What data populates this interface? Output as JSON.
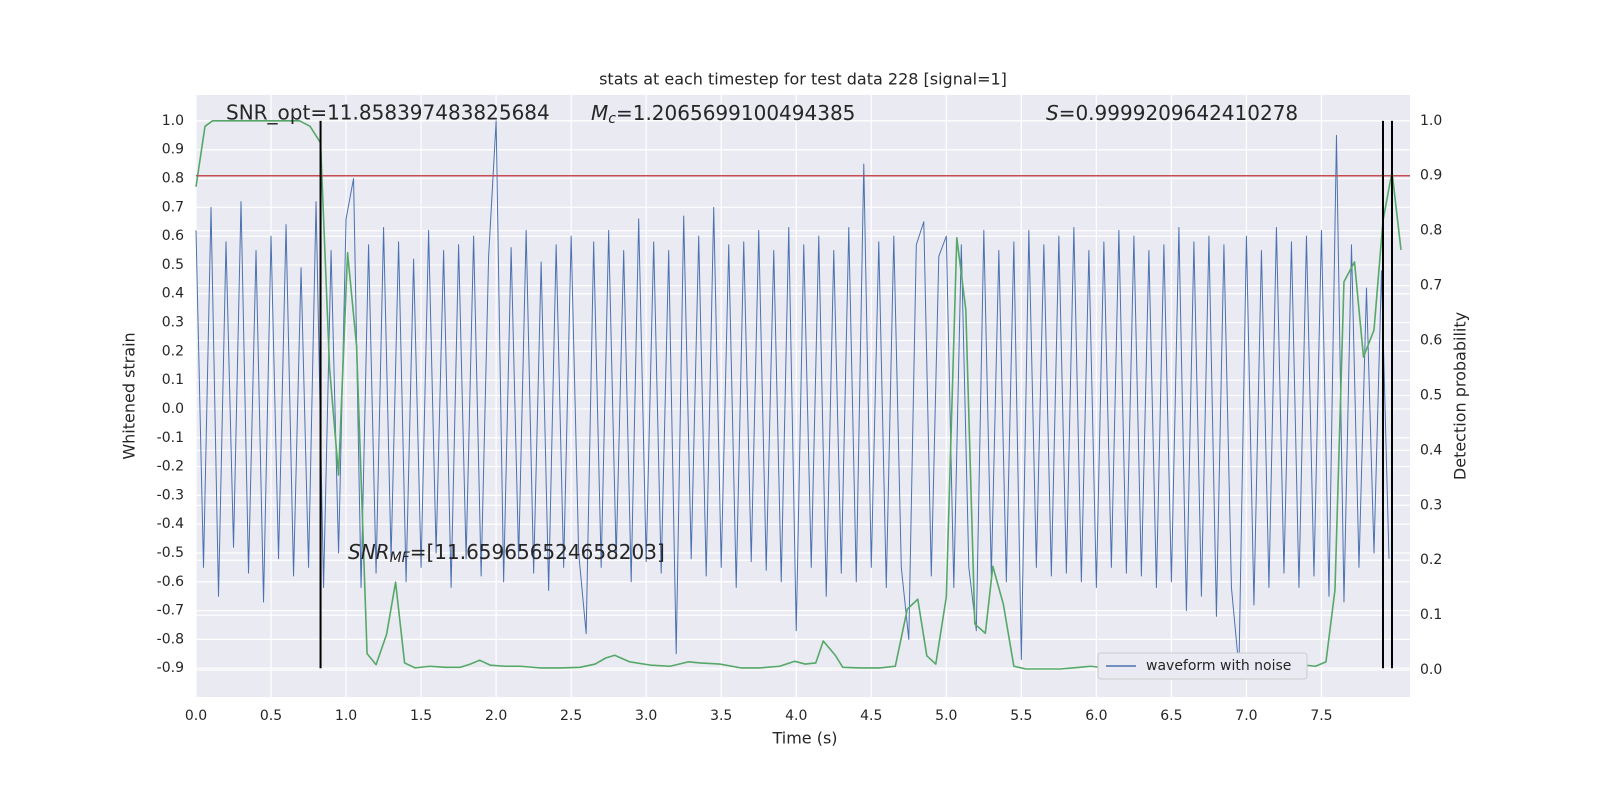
{
  "chart_data": {
    "type": "line",
    "title": "stats at each timestep for test data 228 [signal=1]",
    "xlabel": "Time (s)",
    "ylabel": "Whitened strain",
    "y2label": "Detection probability",
    "xlim": [
      0,
      8.09
    ],
    "ylim": [
      -1.0,
      1.09
    ],
    "y2lim": [
      -0.049,
      1.047
    ],
    "xticks": [
      {
        "value": 0,
        "label": "0.0"
      },
      0.5,
      {
        "value": 1,
        "label": "1.0"
      },
      1.5,
      {
        "value": 2,
        "label": "2.0"
      },
      2.5,
      {
        "value": 3,
        "label": "3.0"
      },
      3.5,
      {
        "value": 4,
        "label": "4.0"
      },
      4.5,
      {
        "value": 5,
        "label": "5.0"
      },
      5.5,
      {
        "value": 6,
        "label": "6.0"
      },
      6.5,
      {
        "value": 7,
        "label": "7.0"
      },
      7.5
    ],
    "yticks": [
      {
        "value": 1,
        "label": "1.0"
      },
      0.9,
      0.8,
      0.7,
      0.6,
      0.5,
      0.4,
      0.3,
      0.2,
      0.1,
      {
        "value": 0,
        "label": "0.0"
      },
      -0.1,
      -0.2,
      -0.3,
      -0.4,
      -0.5,
      -0.6,
      -0.7,
      -0.8,
      -0.9
    ],
    "y2ticks": [
      {
        "value": 0,
        "label": "0.0"
      },
      0.1,
      0.2,
      0.3,
      0.4,
      0.5,
      0.6,
      0.7,
      0.8,
      0.9,
      {
        "value": 1,
        "label": "1.0"
      }
    ],
    "grid": true,
    "legend": "lower right",
    "series": [
      {
        "name": "waveform with noise",
        "color": "#4c72b0",
        "x": [
          0,
          0.05,
          0.1,
          0.15,
          0.2,
          0.25,
          0.3,
          0.35,
          0.4,
          0.45,
          0.5,
          0.55,
          0.6,
          0.65,
          0.7,
          0.75,
          0.8,
          0.85,
          0.9,
          0.95,
          1,
          1.05,
          1.1,
          1.15,
          1.2,
          1.25,
          1.3,
          1.35,
          1.4,
          1.45,
          1.5,
          1.55,
          1.6,
          1.65,
          1.7,
          1.75,
          1.8,
          1.85,
          1.9,
          1.95,
          2,
          2.05,
          2.1,
          2.15,
          2.2,
          2.25,
          2.3,
          2.35,
          2.4,
          2.45,
          2.5,
          2.55,
          2.6,
          2.65,
          2.7,
          2.75,
          2.8,
          2.85,
          2.9,
          2.95,
          3,
          3.05,
          3.1,
          3.15,
          3.2,
          3.25,
          3.3,
          3.35,
          3.4,
          3.45,
          3.5,
          3.55,
          3.6,
          3.65,
          3.7,
          3.75,
          3.8,
          3.85,
          3.9,
          3.95,
          4,
          4.05,
          4.1,
          4.15,
          4.2,
          4.25,
          4.3,
          4.35,
          4.4,
          4.45,
          4.5,
          4.55,
          4.6,
          4.65,
          4.7,
          4.75,
          4.8,
          4.85,
          4.9,
          4.95,
          5,
          5.05,
          5.1,
          5.15,
          5.2,
          5.25,
          5.3,
          5.35,
          5.4,
          5.45,
          5.5,
          5.55,
          5.6,
          5.65,
          5.7,
          5.75,
          5.8,
          5.85,
          5.9,
          5.95,
          6,
          6.05,
          6.1,
          6.15,
          6.2,
          6.25,
          6.3,
          6.35,
          6.4,
          6.45,
          6.5,
          6.55,
          6.6,
          6.65,
          6.7,
          6.75,
          6.8,
          6.85,
          6.9,
          6.95,
          7,
          7.05,
          7.1,
          7.15,
          7.2,
          7.25,
          7.3,
          7.35,
          7.4,
          7.45,
          7.5,
          7.55,
          7.6,
          7.65,
          7.7,
          7.75,
          7.8,
          7.85,
          7.9,
          7.95
        ],
        "values": [
          0.62,
          -0.55,
          0.7,
          -0.65,
          0.58,
          -0.48,
          0.72,
          -0.57,
          0.55,
          -0.67,
          0.6,
          -0.52,
          0.64,
          -0.58,
          0.49,
          -0.55,
          0.72,
          -0.62,
          0.55,
          -0.5,
          0.66,
          0.8,
          -0.62,
          0.57,
          -0.57,
          0.63,
          -0.52,
          0.58,
          -0.6,
          0.52,
          -0.55,
          0.62,
          -0.5,
          0.55,
          -0.62,
          0.57,
          -0.52,
          0.6,
          -0.58,
          0.53,
          1.0,
          -0.6,
          0.56,
          -0.52,
          0.62,
          -0.57,
          0.51,
          -0.63,
          0.57,
          -0.55,
          0.6,
          -0.5,
          -0.78,
          0.58,
          -0.55,
          0.62,
          -0.52,
          0.55,
          -0.6,
          0.66,
          -0.53,
          0.58,
          -0.57,
          0.55,
          -0.85,
          0.67,
          -0.52,
          0.6,
          -0.58,
          0.7,
          -0.55,
          0.57,
          -0.62,
          0.58,
          -0.53,
          0.62,
          -0.56,
          0.55,
          -0.6,
          0.63,
          -0.77,
          0.57,
          -0.55,
          0.6,
          -0.65,
          0.55,
          -0.57,
          0.63,
          -0.6,
          0.85,
          -0.55,
          0.58,
          -0.62,
          0.6,
          -0.55,
          -0.8,
          0.57,
          0.65,
          -0.58,
          0.53,
          0.6,
          -0.62,
          0.57,
          -0.55,
          -0.77,
          0.62,
          -0.58,
          0.55,
          -0.6,
          0.58,
          -0.87,
          0.62,
          -0.55,
          0.57,
          -0.58,
          0.6,
          -0.57,
          0.63,
          -0.6,
          0.55,
          -0.62,
          0.58,
          -0.55,
          0.62,
          -0.57,
          0.6,
          -0.58,
          0.55,
          -0.62,
          0.57,
          -0.6,
          0.63,
          -0.7,
          0.58,
          -0.65,
          0.6,
          -0.72,
          0.57,
          -0.62,
          -0.9,
          0.6,
          -0.68,
          0.55,
          -0.62,
          0.63,
          -0.57,
          0.58,
          -0.62,
          0.6,
          -0.58,
          0.62,
          -0.65,
          0.95,
          -0.67,
          0.57,
          -0.55,
          0.42,
          -0.5,
          0.48,
          -0.52
        ]
      },
      {
        "color": "#55a868",
        "axis": "y2",
        "x": [
          0,
          0.06,
          0.11,
          0.69,
          0.76,
          0.83,
          0.89,
          0.95,
          1.01,
          1.07,
          1.14,
          1.2,
          1.27,
          1.33,
          1.39,
          1.46,
          1.56,
          1.66,
          1.76,
          1.83,
          1.89,
          1.96,
          2.06,
          2.16,
          2.29,
          2.43,
          2.56,
          2.66,
          2.73,
          2.79,
          2.89,
          3.03,
          3.16,
          3.28,
          3.36,
          3.49,
          3.63,
          3.76,
          3.89,
          3.99,
          4.06,
          4.13,
          4.18,
          4.26,
          4.31,
          4.43,
          4.56,
          4.66,
          4.74,
          4.81,
          4.87,
          4.93,
          5.0,
          5.07,
          5.13,
          5.19,
          5.26,
          5.31,
          5.38,
          5.45,
          5.53,
          5.63,
          5.76,
          5.89,
          5.96,
          6.06,
          6.19,
          6.29,
          6.49,
          6.66,
          6.79,
          6.96,
          7.16,
          7.29,
          7.39,
          7.46,
          7.53,
          7.59,
          7.65,
          7.72,
          7.78,
          7.85,
          7.91,
          7.97,
          8.03
        ],
        "values": [
          0.88,
          0.99,
          1.0,
          1.0,
          0.99,
          0.96,
          0.55,
          0.355,
          0.76,
          0.59,
          0.03,
          0.01,
          0.065,
          0.16,
          0.013,
          0.004,
          0.007,
          0.005,
          0.005,
          0.011,
          0.018,
          0.009,
          0.007,
          0.007,
          0.004,
          0.004,
          0.005,
          0.011,
          0.022,
          0.027,
          0.015,
          0.009,
          0.007,
          0.015,
          0.013,
          0.011,
          0.004,
          0.004,
          0.007,
          0.016,
          0.011,
          0.013,
          0.053,
          0.027,
          0.005,
          0.004,
          0.004,
          0.007,
          0.111,
          0.129,
          0.026,
          0.011,
          0.133,
          0.787,
          0.656,
          0.084,
          0.067,
          0.189,
          0.12,
          0.007,
          0.002,
          0.002,
          0.002,
          0.005,
          0.007,
          0.004,
          0.005,
          0.002,
          0.002,
          0.002,
          0.004,
          0.002,
          0.002,
          0.004,
          0.009,
          0.007,
          0.015,
          0.146,
          0.707,
          0.743,
          0.57,
          0.619,
          0.818,
          0.907,
          0.765
        ]
      }
    ],
    "hlines": [
      {
        "value": 0.9,
        "axis": "y2",
        "color": "#c44e52"
      }
    ],
    "vlines": {
      "x": [
        0.83,
        7.91,
        7.97
      ],
      "ymin": -0.9,
      "ymax": 1.0,
      "color": "#000000"
    },
    "annotations": [
      {
        "text": "SNR_opt=11.858397483825684"
      },
      {
        "math": "M",
        "sub": "c",
        "text": "=1.2065699100494385"
      },
      {
        "math": "S",
        "text": "=0.9999209642410278"
      },
      {
        "math": "SNR",
        "sub": "MF",
        "text": "=[11.659656524658203]"
      }
    ]
  }
}
